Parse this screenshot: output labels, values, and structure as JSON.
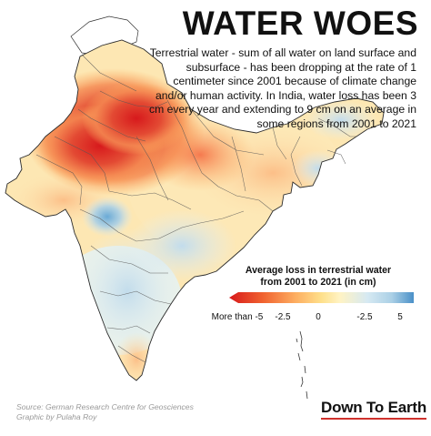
{
  "title": "WATER WOES",
  "description": "Terrestrial water - sum of all water on land surface and subsurface - has been dropping at the rate of 1 centimeter since 2001 because of climate change and/or human activity. In India, water loss has been 3 cm every year and extending to 9 cm on an average in some regions from 2001 to 2021",
  "legend": {
    "title_line1": "Average loss in terrestrial water",
    "title_line2": "from 2001 to 2021 (in cm)",
    "ticks": [
      "More than -5",
      "-2.5",
      "0",
      "-2.5",
      "5"
    ],
    "colors": [
      "#d7191c",
      "#f0612f",
      "#fdae61",
      "#fee08b",
      "#fff3c4",
      "#d6e9f2",
      "#abd0e6",
      "#4a90c8"
    ]
  },
  "source_line1": "Source:  German Research Centre for Geosciences",
  "source_line2": "Graphic by Pulaha Roy",
  "brand": "Down To Earth"
}
